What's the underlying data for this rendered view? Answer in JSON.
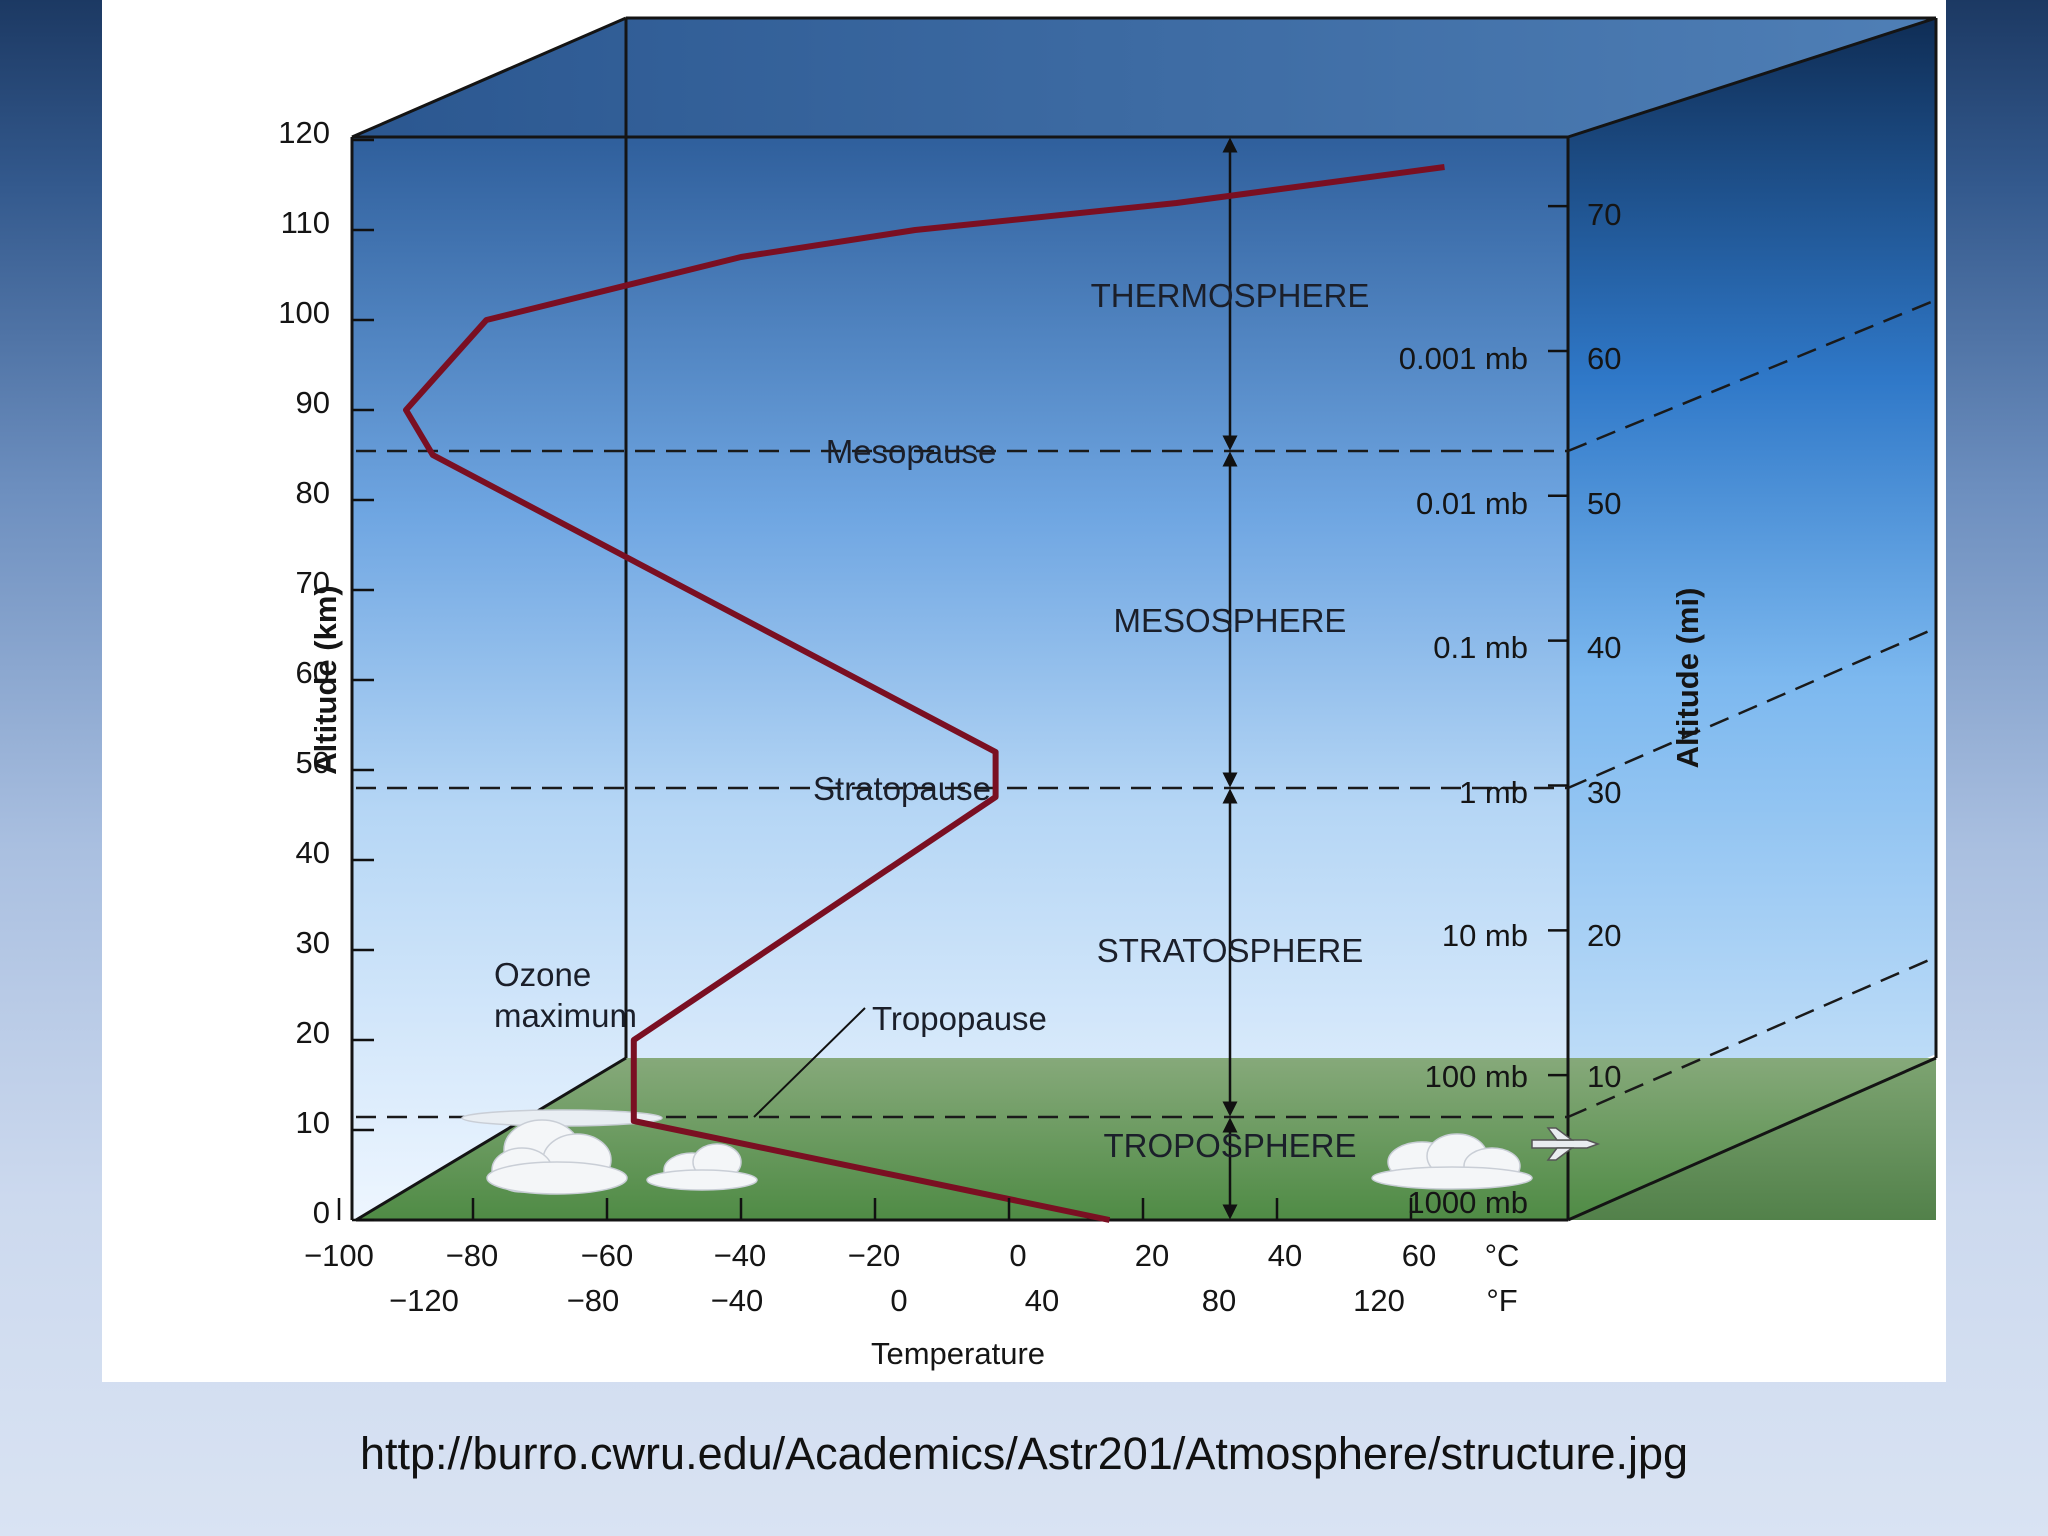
{
  "diagram": {
    "y_axis_left": {
      "label": "Altitude (km)",
      "ticks": [
        "0",
        "10",
        "20",
        "30",
        "40",
        "50",
        "60",
        "70",
        "80",
        "90",
        "100",
        "110",
        "120"
      ]
    },
    "y_axis_right": {
      "label": "Altitude (mi)",
      "ticks": [
        "10",
        "20",
        "30",
        "40",
        "50",
        "60",
        "70"
      ]
    },
    "x_axis": {
      "label": "Temperature",
      "celsius_unit": "°C",
      "fahrenheit_unit": "°F",
      "celsius_ticks": [
        "−100",
        "−80",
        "−60",
        "−40",
        "−20",
        "0",
        "20",
        "40",
        "60"
      ],
      "fahrenheit_ticks": [
        "−120",
        "−80",
        "−40",
        "0",
        "40",
        "80",
        "120"
      ]
    },
    "pressure_labels": [
      "1000 mb",
      "100 mb",
      "10 mb",
      "1 mb",
      "0.1 mb",
      "0.01 mb",
      "0.001 mb"
    ],
    "layers": [
      "TROPOSPHERE",
      "STRATOSPHERE",
      "MESOSPHERE",
      "THERMOSPHERE"
    ],
    "pauses": [
      "Tropopause",
      "Stratopause",
      "Mesopause"
    ],
    "ozone_label": [
      "Ozone",
      "maximum"
    ],
    "temperature_profile": {
      "unit_x": "°C",
      "unit_y": "km",
      "points": [
        [
          15,
          0
        ],
        [
          -56,
          11
        ],
        [
          -56,
          20
        ],
        [
          -2,
          47
        ],
        [
          -2,
          52
        ],
        [
          -86,
          85
        ],
        [
          -90,
          90
        ],
        [
          -78,
          100
        ],
        [
          -40,
          107
        ],
        [
          -14,
          110
        ],
        [
          25,
          113
        ],
        [
          65,
          117
        ]
      ]
    },
    "colors": {
      "profile_line": "#7a0f22",
      "sky_top": "#2f5f9c",
      "sky_bottom": "#eaf4ff",
      "ground": "#6b9a5a"
    }
  },
  "caption": {
    "url": "http://burro.cwru.edu/Academics/Astr201/Atmosphere/structure.jpg"
  }
}
